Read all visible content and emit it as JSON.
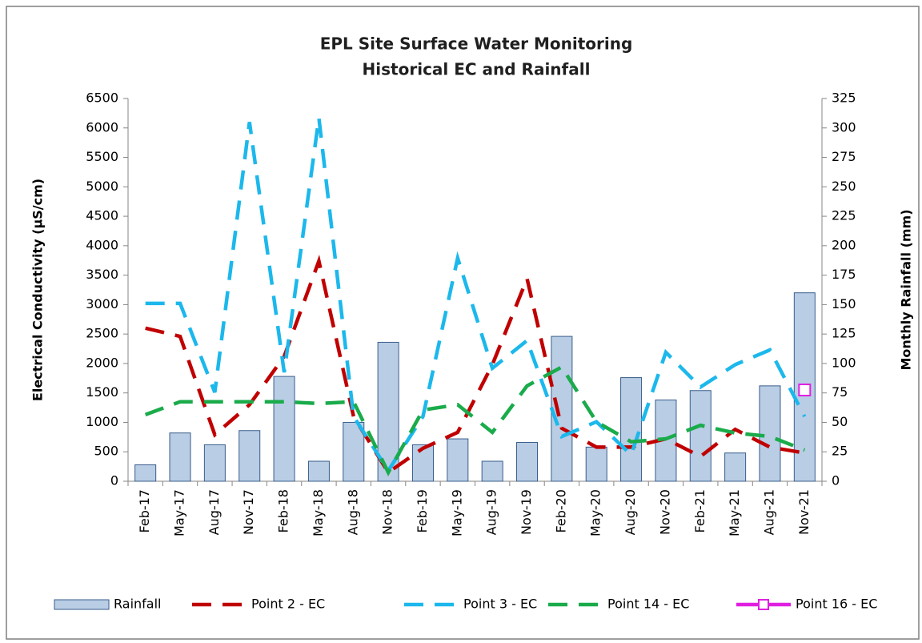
{
  "chart_data": {
    "type": "combo",
    "title": [
      "EPL Site Surface Water Monitoring",
      "Historical EC  and Rainfall"
    ],
    "y_label": "Electrical Conductivity (µS/cm)",
    "y2_label": "Monthly Rainfall  (mm)",
    "categories": [
      "Feb-17",
      "May-17",
      "Aug-17",
      "Nov-17",
      "Feb-18",
      "May-18",
      "Aug-18",
      "Nov-18",
      "Feb-19",
      "May-19",
      "Aug-19",
      "Nov-19",
      "Feb-20",
      "May-20",
      "Aug-20",
      "Nov-20",
      "Feb-21",
      "May-21",
      "Aug-21",
      "Nov-21"
    ],
    "ylim": [
      0,
      6500
    ],
    "yticks": [
      0,
      500,
      1000,
      1500,
      2000,
      2500,
      3000,
      3500,
      4000,
      4500,
      5000,
      5500,
      6000,
      6500
    ],
    "y2lim": [
      0,
      325
    ],
    "y2ticks": [
      0,
      25,
      50,
      75,
      100,
      125,
      150,
      175,
      200,
      225,
      250,
      275,
      300,
      325
    ],
    "grid": false,
    "legend": "bottom",
    "series": [
      {
        "name": "Rainfall",
        "type": "bar",
        "axis": "y2",
        "color": "#b9cde5",
        "values": [
          14,
          41,
          31,
          43,
          89,
          17,
          50,
          118,
          31,
          36,
          17,
          33,
          123,
          29,
          88,
          69,
          77,
          24,
          81,
          160
        ]
      },
      {
        "name": "Point 2 - EC",
        "type": "line",
        "color": "#c00000",
        "values": [
          2600,
          2460,
          790,
          1300,
          2120,
          3740,
          1100,
          150,
          560,
          830,
          1980,
          3440,
          900,
          580,
          580,
          720,
          420,
          880,
          580,
          480
        ]
      },
      {
        "name": "Point 3 - EC",
        "type": "line",
        "color": "#1cb8ec",
        "values": [
          3020,
          3020,
          1510,
          6100,
          1850,
          6170,
          1100,
          180,
          1100,
          3790,
          1920,
          2390,
          760,
          1010,
          450,
          2190,
          1600,
          1980,
          2230,
          1100
        ]
      },
      {
        "name": "Point 14 - EC",
        "type": "line",
        "color": "#1aab4b",
        "values": [
          1130,
          1350,
          1350,
          1350,
          1350,
          1320,
          1350,
          150,
          1210,
          1300,
          830,
          1620,
          1940,
          1010,
          670,
          720,
          950,
          820,
          760,
          530
        ]
      },
      {
        "name": "Point 16 - EC",
        "type": "line",
        "color": "#e020e0",
        "marker": "square",
        "values": [
          null,
          null,
          null,
          null,
          null,
          null,
          null,
          null,
          null,
          null,
          null,
          null,
          null,
          null,
          null,
          null,
          null,
          null,
          null,
          1550
        ]
      }
    ]
  }
}
